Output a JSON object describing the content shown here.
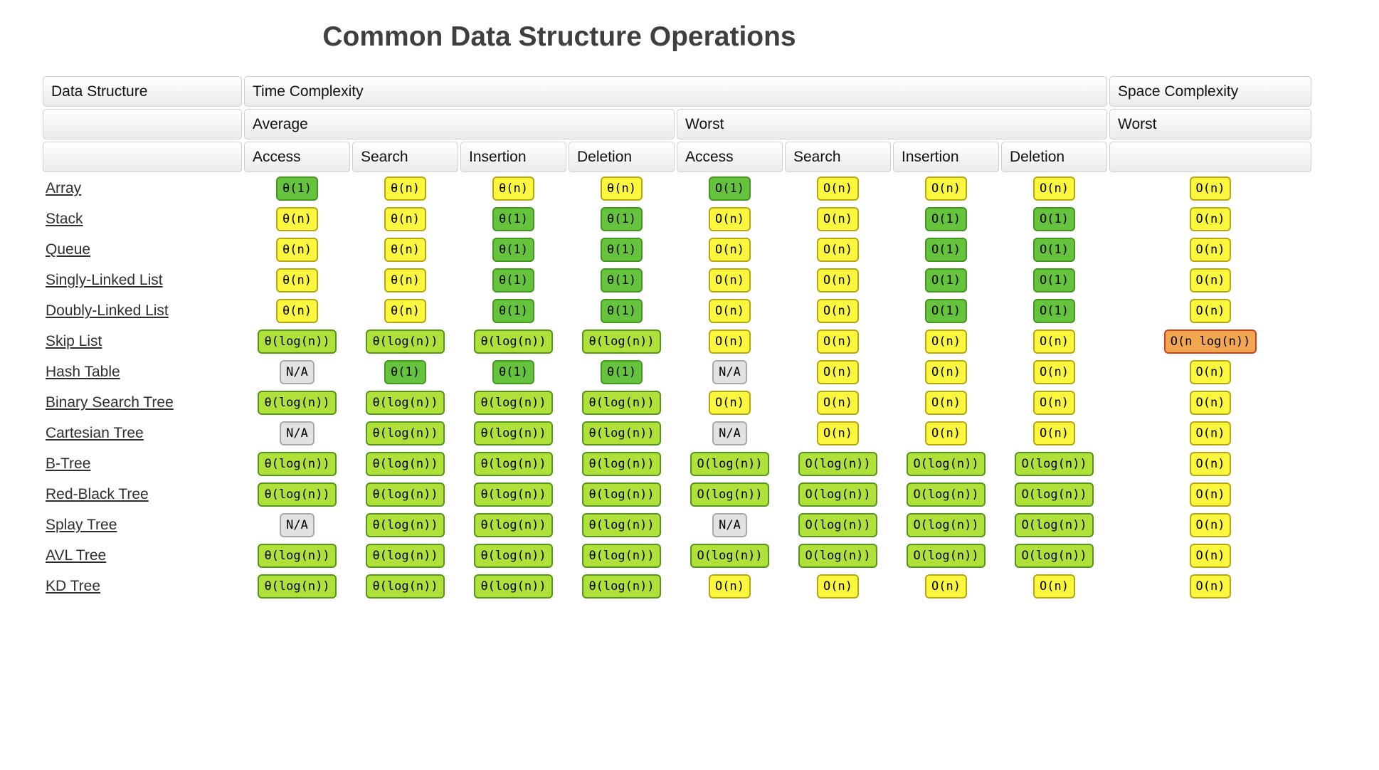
{
  "title": "Common Data Structure Operations",
  "colors": {
    "green": {
      "bg": "#65c33e",
      "border": "#45961f"
    },
    "yellowgreen": {
      "bg": "#b0e03a",
      "border": "#55951b"
    },
    "yellow": {
      "bg": "#faf73e",
      "border": "#b5a712"
    },
    "orange": {
      "bg": "#f2a64f",
      "border": "#c6411c"
    },
    "gray": {
      "bg": "#e2e2e2",
      "border": "#a9a9a9"
    }
  },
  "table": {
    "header": {
      "data_structure": "Data Structure",
      "time_complexity": "Time Complexity",
      "space_complexity": "Space Complexity",
      "average": "Average",
      "worst": "Worst",
      "space_worst": "Worst",
      "operations": [
        "Access",
        "Search",
        "Insertion",
        "Deletion"
      ]
    },
    "rows": [
      {
        "name": "Array",
        "average": [
          {
            "text": "θ(1)",
            "level": "green"
          },
          {
            "text": "θ(n)",
            "level": "yellow"
          },
          {
            "text": "θ(n)",
            "level": "yellow"
          },
          {
            "text": "θ(n)",
            "level": "yellow"
          }
        ],
        "worst": [
          {
            "text": "O(1)",
            "level": "green"
          },
          {
            "text": "O(n)",
            "level": "yellow"
          },
          {
            "text": "O(n)",
            "level": "yellow"
          },
          {
            "text": "O(n)",
            "level": "yellow"
          }
        ],
        "space": {
          "text": "O(n)",
          "level": "yellow"
        }
      },
      {
        "name": "Stack",
        "average": [
          {
            "text": "θ(n)",
            "level": "yellow"
          },
          {
            "text": "θ(n)",
            "level": "yellow"
          },
          {
            "text": "θ(1)",
            "level": "green"
          },
          {
            "text": "θ(1)",
            "level": "green"
          }
        ],
        "worst": [
          {
            "text": "O(n)",
            "level": "yellow"
          },
          {
            "text": "O(n)",
            "level": "yellow"
          },
          {
            "text": "O(1)",
            "level": "green"
          },
          {
            "text": "O(1)",
            "level": "green"
          }
        ],
        "space": {
          "text": "O(n)",
          "level": "yellow"
        }
      },
      {
        "name": "Queue",
        "average": [
          {
            "text": "θ(n)",
            "level": "yellow"
          },
          {
            "text": "θ(n)",
            "level": "yellow"
          },
          {
            "text": "θ(1)",
            "level": "green"
          },
          {
            "text": "θ(1)",
            "level": "green"
          }
        ],
        "worst": [
          {
            "text": "O(n)",
            "level": "yellow"
          },
          {
            "text": "O(n)",
            "level": "yellow"
          },
          {
            "text": "O(1)",
            "level": "green"
          },
          {
            "text": "O(1)",
            "level": "green"
          }
        ],
        "space": {
          "text": "O(n)",
          "level": "yellow"
        }
      },
      {
        "name": "Singly-Linked List",
        "average": [
          {
            "text": "θ(n)",
            "level": "yellow"
          },
          {
            "text": "θ(n)",
            "level": "yellow"
          },
          {
            "text": "θ(1)",
            "level": "green"
          },
          {
            "text": "θ(1)",
            "level": "green"
          }
        ],
        "worst": [
          {
            "text": "O(n)",
            "level": "yellow"
          },
          {
            "text": "O(n)",
            "level": "yellow"
          },
          {
            "text": "O(1)",
            "level": "green"
          },
          {
            "text": "O(1)",
            "level": "green"
          }
        ],
        "space": {
          "text": "O(n)",
          "level": "yellow"
        }
      },
      {
        "name": "Doubly-Linked List",
        "average": [
          {
            "text": "θ(n)",
            "level": "yellow"
          },
          {
            "text": "θ(n)",
            "level": "yellow"
          },
          {
            "text": "θ(1)",
            "level": "green"
          },
          {
            "text": "θ(1)",
            "level": "green"
          }
        ],
        "worst": [
          {
            "text": "O(n)",
            "level": "yellow"
          },
          {
            "text": "O(n)",
            "level": "yellow"
          },
          {
            "text": "O(1)",
            "level": "green"
          },
          {
            "text": "O(1)",
            "level": "green"
          }
        ],
        "space": {
          "text": "O(n)",
          "level": "yellow"
        }
      },
      {
        "name": "Skip List",
        "average": [
          {
            "text": "θ(log(n))",
            "level": "yellowgreen"
          },
          {
            "text": "θ(log(n))",
            "level": "yellowgreen"
          },
          {
            "text": "θ(log(n))",
            "level": "yellowgreen"
          },
          {
            "text": "θ(log(n))",
            "level": "yellowgreen"
          }
        ],
        "worst": [
          {
            "text": "O(n)",
            "level": "yellow"
          },
          {
            "text": "O(n)",
            "level": "yellow"
          },
          {
            "text": "O(n)",
            "level": "yellow"
          },
          {
            "text": "O(n)",
            "level": "yellow"
          }
        ],
        "space": {
          "text": "O(n log(n))",
          "level": "orange"
        }
      },
      {
        "name": "Hash Table",
        "average": [
          {
            "text": "N/A",
            "level": "gray"
          },
          {
            "text": "θ(1)",
            "level": "green"
          },
          {
            "text": "θ(1)",
            "level": "green"
          },
          {
            "text": "θ(1)",
            "level": "green"
          }
        ],
        "worst": [
          {
            "text": "N/A",
            "level": "gray"
          },
          {
            "text": "O(n)",
            "level": "yellow"
          },
          {
            "text": "O(n)",
            "level": "yellow"
          },
          {
            "text": "O(n)",
            "level": "yellow"
          }
        ],
        "space": {
          "text": "O(n)",
          "level": "yellow"
        }
      },
      {
        "name": "Binary Search Tree",
        "average": [
          {
            "text": "θ(log(n))",
            "level": "yellowgreen"
          },
          {
            "text": "θ(log(n))",
            "level": "yellowgreen"
          },
          {
            "text": "θ(log(n))",
            "level": "yellowgreen"
          },
          {
            "text": "θ(log(n))",
            "level": "yellowgreen"
          }
        ],
        "worst": [
          {
            "text": "O(n)",
            "level": "yellow"
          },
          {
            "text": "O(n)",
            "level": "yellow"
          },
          {
            "text": "O(n)",
            "level": "yellow"
          },
          {
            "text": "O(n)",
            "level": "yellow"
          }
        ],
        "space": {
          "text": "O(n)",
          "level": "yellow"
        }
      },
      {
        "name": "Cartesian Tree",
        "average": [
          {
            "text": "N/A",
            "level": "gray"
          },
          {
            "text": "θ(log(n))",
            "level": "yellowgreen"
          },
          {
            "text": "θ(log(n))",
            "level": "yellowgreen"
          },
          {
            "text": "θ(log(n))",
            "level": "yellowgreen"
          }
        ],
        "worst": [
          {
            "text": "N/A",
            "level": "gray"
          },
          {
            "text": "O(n)",
            "level": "yellow"
          },
          {
            "text": "O(n)",
            "level": "yellow"
          },
          {
            "text": "O(n)",
            "level": "yellow"
          }
        ],
        "space": {
          "text": "O(n)",
          "level": "yellow"
        }
      },
      {
        "name": "B-Tree",
        "average": [
          {
            "text": "θ(log(n))",
            "level": "yellowgreen"
          },
          {
            "text": "θ(log(n))",
            "level": "yellowgreen"
          },
          {
            "text": "θ(log(n))",
            "level": "yellowgreen"
          },
          {
            "text": "θ(log(n))",
            "level": "yellowgreen"
          }
        ],
        "worst": [
          {
            "text": "O(log(n))",
            "level": "yellowgreen"
          },
          {
            "text": "O(log(n))",
            "level": "yellowgreen"
          },
          {
            "text": "O(log(n))",
            "level": "yellowgreen"
          },
          {
            "text": "O(log(n))",
            "level": "yellowgreen"
          }
        ],
        "space": {
          "text": "O(n)",
          "level": "yellow"
        }
      },
      {
        "name": "Red-Black Tree",
        "average": [
          {
            "text": "θ(log(n))",
            "level": "yellowgreen"
          },
          {
            "text": "θ(log(n))",
            "level": "yellowgreen"
          },
          {
            "text": "θ(log(n))",
            "level": "yellowgreen"
          },
          {
            "text": "θ(log(n))",
            "level": "yellowgreen"
          }
        ],
        "worst": [
          {
            "text": "O(log(n))",
            "level": "yellowgreen"
          },
          {
            "text": "O(log(n))",
            "level": "yellowgreen"
          },
          {
            "text": "O(log(n))",
            "level": "yellowgreen"
          },
          {
            "text": "O(log(n))",
            "level": "yellowgreen"
          }
        ],
        "space": {
          "text": "O(n)",
          "level": "yellow"
        }
      },
      {
        "name": "Splay Tree",
        "average": [
          {
            "text": "N/A",
            "level": "gray"
          },
          {
            "text": "θ(log(n))",
            "level": "yellowgreen"
          },
          {
            "text": "θ(log(n))",
            "level": "yellowgreen"
          },
          {
            "text": "θ(log(n))",
            "level": "yellowgreen"
          }
        ],
        "worst": [
          {
            "text": "N/A",
            "level": "gray"
          },
          {
            "text": "O(log(n))",
            "level": "yellowgreen"
          },
          {
            "text": "O(log(n))",
            "level": "yellowgreen"
          },
          {
            "text": "O(log(n))",
            "level": "yellowgreen"
          }
        ],
        "space": {
          "text": "O(n)",
          "level": "yellow"
        }
      },
      {
        "name": "AVL Tree",
        "average": [
          {
            "text": "θ(log(n))",
            "level": "yellowgreen"
          },
          {
            "text": "θ(log(n))",
            "level": "yellowgreen"
          },
          {
            "text": "θ(log(n))",
            "level": "yellowgreen"
          },
          {
            "text": "θ(log(n))",
            "level": "yellowgreen"
          }
        ],
        "worst": [
          {
            "text": "O(log(n))",
            "level": "yellowgreen"
          },
          {
            "text": "O(log(n))",
            "level": "yellowgreen"
          },
          {
            "text": "O(log(n))",
            "level": "yellowgreen"
          },
          {
            "text": "O(log(n))",
            "level": "yellowgreen"
          }
        ],
        "space": {
          "text": "O(n)",
          "level": "yellow"
        }
      },
      {
        "name": "KD Tree",
        "average": [
          {
            "text": "θ(log(n))",
            "level": "yellowgreen"
          },
          {
            "text": "θ(log(n))",
            "level": "yellowgreen"
          },
          {
            "text": "θ(log(n))",
            "level": "yellowgreen"
          },
          {
            "text": "θ(log(n))",
            "level": "yellowgreen"
          }
        ],
        "worst": [
          {
            "text": "O(n)",
            "level": "yellow"
          },
          {
            "text": "O(n)",
            "level": "yellow"
          },
          {
            "text": "O(n)",
            "level": "yellow"
          },
          {
            "text": "O(n)",
            "level": "yellow"
          }
        ],
        "space": {
          "text": "O(n)",
          "level": "yellow"
        }
      }
    ]
  }
}
